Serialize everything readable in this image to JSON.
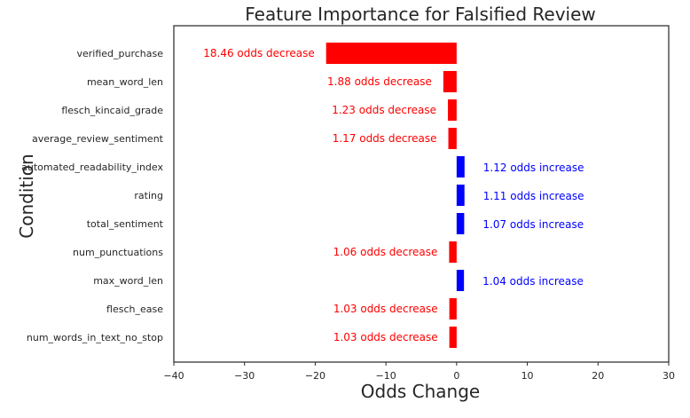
{
  "chart_data": {
    "type": "bar",
    "orientation": "horizontal",
    "title": "Feature Importance for Falsified Review",
    "xlabel": "Odds Change",
    "ylabel": "Condition",
    "xlim": [
      -40,
      30
    ],
    "xticks": [
      -40,
      -30,
      -20,
      -10,
      0,
      10,
      20,
      30
    ],
    "grid": false,
    "colors": {
      "decrease": "#ff0000",
      "increase": "#0000ff"
    },
    "categories": [
      "verified_purchase",
      "mean_word_len",
      "flesch_kincaid_grade",
      "average_review_sentiment",
      "automated_readability_index",
      "rating",
      "total_sentiment",
      "num_punctuations",
      "max_word_len",
      "flesch_ease",
      "num_words_in_text_no_stop"
    ],
    "values": [
      -18.46,
      -1.88,
      -1.23,
      -1.17,
      1.12,
      1.11,
      1.07,
      -1.06,
      1.04,
      -1.03,
      -1.03
    ],
    "data_labels": [
      "18.46 odds decrease",
      "1.88 odds decrease",
      "1.23 odds decrease",
      "1.17 odds decrease",
      "1.12 odds increase",
      "1.11 odds increase",
      "1.07 odds increase",
      "1.06 odds decrease",
      "1.04 odds increase",
      "1.03 odds decrease",
      "1.03 odds decrease"
    ]
  }
}
